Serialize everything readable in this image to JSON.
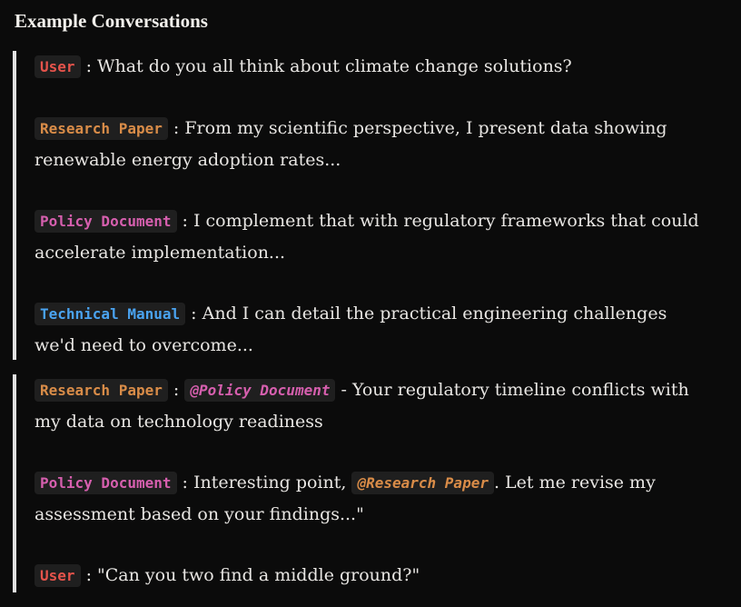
{
  "heading": "Example Conversations",
  "colors": {
    "user": "#e5534b",
    "research_paper": "#d98c48",
    "policy_document": "#d65fae",
    "technical_manual": "#4aa3f0",
    "quote_border": "#e2e2e2",
    "background": "#0b0b0b"
  },
  "block1": {
    "m1": {
      "speaker": "User",
      "text": " : What do you all think about climate change solutions?"
    },
    "m2": {
      "speaker": "Research Paper",
      "text": " : From my scientific perspective, I present data showing renewable energy adoption rates..."
    },
    "m3": {
      "speaker": "Policy Document",
      "text": " : I complement that with regulatory frameworks that could accelerate implementation..."
    },
    "m4": {
      "speaker": "Technical Manual",
      "text": " : And I can detail the practical engineering challenges we'd need to overcome..."
    }
  },
  "block2": {
    "m1": {
      "speaker": "Research Paper",
      "sep": " : ",
      "mention": "@Policy Document",
      "text": " - Your regulatory timeline conflicts with my data on technology readiness"
    },
    "m2": {
      "speaker": "Policy Document",
      "text_before": " : Interesting point, ",
      "mention": "@Research Paper",
      "text_after": ". Let me revise my assessment based on your findings...\""
    },
    "m3": {
      "speaker": "User",
      "text": " : \"Can you two find a middle ground?\""
    }
  }
}
